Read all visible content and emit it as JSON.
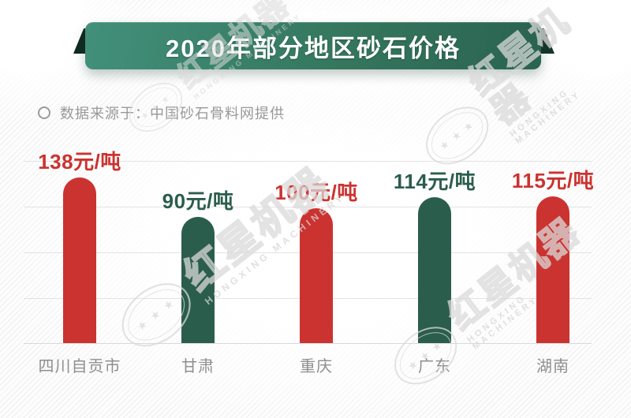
{
  "banner": {
    "title": "2020年部分地区砂石价格"
  },
  "source": {
    "text": "数据来源于：中国砂石骨料网提供"
  },
  "watermark": {
    "cn": "红星机器",
    "en": "HONGXING MACHINERY"
  },
  "colors": {
    "red": "#cb3330",
    "green": "#2b5d4d",
    "banner_start": "#42907a",
    "banner_end": "#2a6350",
    "fold_dark": "#0f2a21",
    "gridline": "#e3e3e3",
    "category_gray": "#8f8f8f",
    "source_gray": "#999999"
  },
  "chart_data": {
    "type": "bar",
    "title": "2020年部分地区砂石价格",
    "source_note": "数据来源于：中国砂石骨料网提供",
    "categories": [
      "四川自贡市",
      "甘肃",
      "重庆",
      "广东",
      "湖南"
    ],
    "values": [
      138,
      90,
      100,
      114,
      115
    ],
    "unit": "元/吨",
    "value_labels": [
      "138元/吨",
      "90元/吨",
      "100元/吨",
      "114元/吨",
      "115元/吨"
    ],
    "bar_colors": [
      "#cb3330",
      "#2b5d4d",
      "#cb3330",
      "#2b5d4d",
      "#cb3330"
    ],
    "bar_shape": "rounded-top-capsule",
    "grid": true,
    "gridline_count": 5,
    "legend_position": "none",
    "y_axis_labels": "none",
    "xlabel": "",
    "ylabel": ""
  }
}
